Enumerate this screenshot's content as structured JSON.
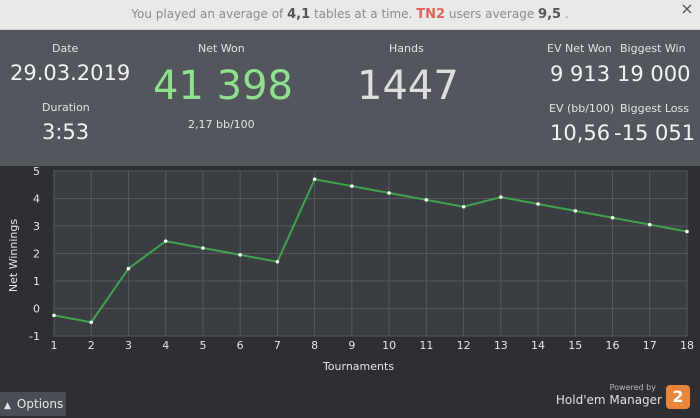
{
  "banner": {
    "pre": "You played an average of",
    "tables_avg": "4,1",
    "mid": "tables at a time.",
    "tn2": "TN2",
    "users": "users average",
    "users_avg": "9,5",
    "post": ".",
    "close": "×"
  },
  "stats": {
    "date_label": "Date",
    "date": "29.03.2019",
    "duration_label": "Duration",
    "duration": "3:53",
    "net_won_label": "Net Won",
    "net_won": "41 398",
    "bb100": "2,17 bb/100",
    "hands_label": "Hands",
    "hands": "1447",
    "ev_net_won_label": "EV Net Won",
    "ev_net_won": "9 913",
    "biggest_win_label": "Biggest Win",
    "biggest_win": "19 000",
    "ev_bb100_label": "EV (bb/100)",
    "ev_bb100": "10,56",
    "biggest_loss_label": "Biggest Loss",
    "biggest_loss": "-15 051",
    "accent_green": "#8fe08f"
  },
  "chart_data": {
    "type": "line",
    "xlabel": "Tournaments",
    "ylabel": "Net Winnings",
    "x": [
      1,
      2,
      3,
      4,
      5,
      6,
      7,
      8,
      9,
      10,
      11,
      12,
      13,
      14,
      15,
      16,
      17,
      18
    ],
    "y": [
      -0.25,
      -0.5,
      1.45,
      2.45,
      2.2,
      1.95,
      1.7,
      4.7,
      4.45,
      4.2,
      3.95,
      3.7,
      4.05,
      3.8,
      3.55,
      3.3,
      3.05,
      2.8
    ],
    "xlim": [
      1,
      18
    ],
    "ylim": [
      -1,
      5
    ],
    "yticks": [
      -1,
      0,
      1,
      2,
      3,
      4,
      5
    ],
    "grid": true,
    "line_color": "#3fa34d",
    "point_color": "#ffffff"
  },
  "footer": {
    "options": "Options",
    "powered_by": "Powered by",
    "brand": "Hold'em Manager",
    "brand_logo": "2"
  }
}
